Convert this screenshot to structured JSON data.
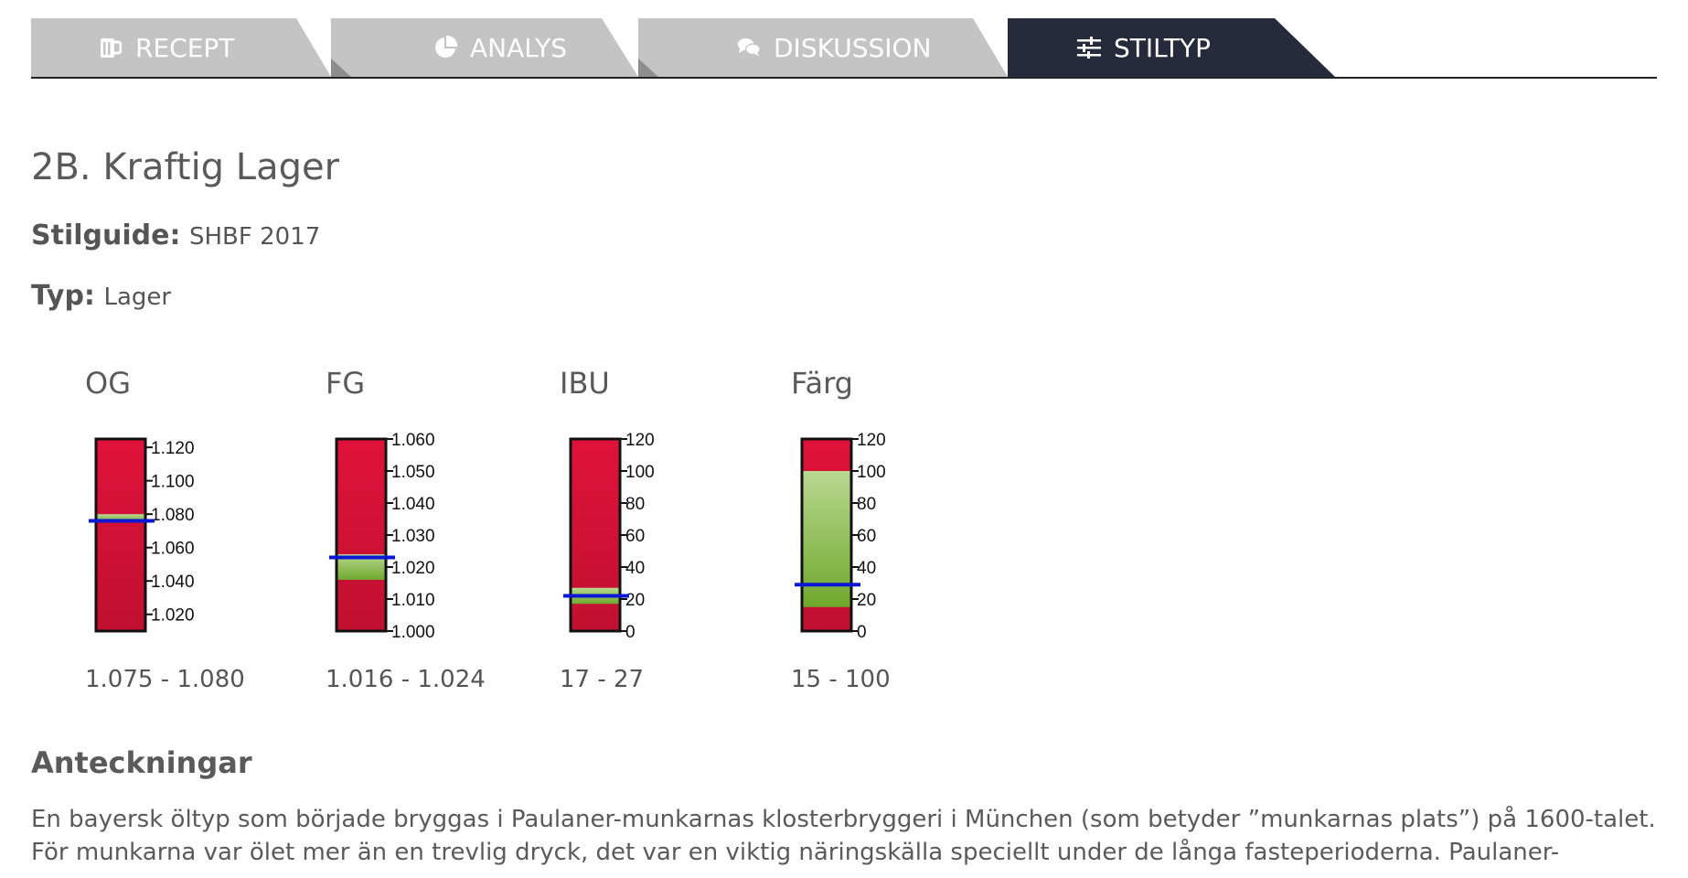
{
  "tabs": [
    {
      "label": "RECEPT",
      "icon": "beer-mug-icon",
      "active": false
    },
    {
      "label": "ANALYS",
      "icon": "pie-chart-icon",
      "active": false
    },
    {
      "label": "DISKUSSION",
      "icon": "comments-icon",
      "active": false
    },
    {
      "label": "STILTYP",
      "icon": "sliders-icon",
      "active": true
    }
  ],
  "style": {
    "title": "2B. Kraftig Lager",
    "guide_label": "Stilguide:",
    "guide_value": "SHBF 2017",
    "type_label": "Typ:",
    "type_value": "Lager"
  },
  "colors": {
    "tab_inactive": "#c4c4c4",
    "tab_active": "#252b3a",
    "gauge_red": "#dc1a3a",
    "gauge_green": "#6fa82c",
    "marker": "#0b16d6"
  },
  "chart_data": [
    {
      "type": "gauge",
      "title": "OG",
      "range_text": "1.075 - 1.080",
      "ticks": [
        "1.120",
        "1.100",
        "1.080",
        "1.060",
        "1.040",
        "1.020"
      ],
      "tick_values": [
        1.12,
        1.1,
        1.08,
        1.06,
        1.04,
        1.02
      ],
      "scale": [
        1.01,
        1.125
      ],
      "green_range": [
        1.075,
        1.08
      ],
      "marker": 1.076
    },
    {
      "type": "gauge",
      "title": "FG",
      "range_text": "1.016 - 1.024",
      "ticks": [
        "1.060",
        "1.050",
        "1.040",
        "1.030",
        "1.020",
        "1.010",
        "1.000"
      ],
      "tick_values": [
        1.06,
        1.05,
        1.04,
        1.03,
        1.02,
        1.01,
        1.0
      ],
      "scale": [
        1.0,
        1.06
      ],
      "green_range": [
        1.016,
        1.024
      ],
      "marker": 1.023
    },
    {
      "type": "gauge",
      "title": "IBU",
      "range_text": "17 - 27",
      "ticks": [
        "120",
        "100",
        "80",
        "60",
        "40",
        "20",
        "0"
      ],
      "tick_values": [
        120,
        100,
        80,
        60,
        40,
        20,
        0
      ],
      "scale": [
        0,
        120
      ],
      "green_range": [
        17,
        27
      ],
      "marker": 22
    },
    {
      "type": "gauge",
      "title": "Färg",
      "range_text": "15 - 100",
      "ticks": [
        "120",
        "100",
        "80",
        "60",
        "40",
        "20",
        "0"
      ],
      "tick_values": [
        120,
        100,
        80,
        60,
        40,
        20,
        0
      ],
      "scale": [
        0,
        120
      ],
      "green_range": [
        15,
        100
      ],
      "marker": 29
    }
  ],
  "notes": {
    "heading": "Anteckningar",
    "text": "En bayersk öltyp som började bryggas i Paulaner-munkarnas klosterbryggeri i München (som betyder ”munkarnas plats”) på 1600-talet. För munkarna var ölet mer än en trevlig dryck, det var en viktig näringskälla speciellt under de långa fasteperioderna. Paulaner-"
  }
}
